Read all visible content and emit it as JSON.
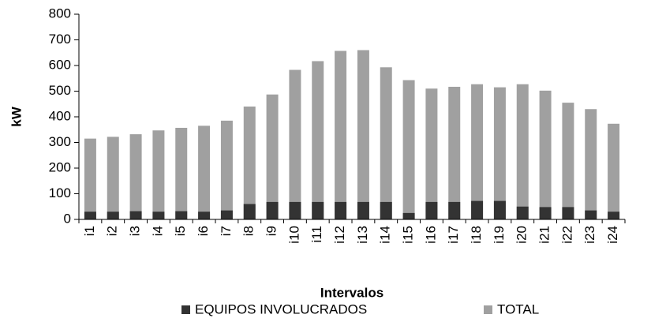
{
  "chart_data": {
    "type": "bar",
    "overlap": true,
    "y_label": "kW",
    "x_label": "Intervalos",
    "categories": [
      "i1",
      "i2",
      "i3",
      "i4",
      "i5",
      "i6",
      "i7",
      "i8",
      "i9",
      "i10",
      "i11",
      "i12",
      "i13",
      "i14",
      "i15",
      "i16",
      "i17",
      "i18",
      "i19",
      "i20",
      "i21",
      "i22",
      "i23",
      "i24"
    ],
    "series": [
      {
        "name": "EQUIPOS INVOLUCRADOS",
        "color": "#333333",
        "values": [
          30,
          30,
          32,
          30,
          32,
          30,
          35,
          60,
          68,
          68,
          68,
          68,
          68,
          68,
          25,
          68,
          68,
          72,
          72,
          50,
          48,
          48,
          35,
          30
        ]
      },
      {
        "name": "TOTAL",
        "color": "#a0a0a0",
        "values": [
          315,
          322,
          332,
          347,
          357,
          365,
          385,
          440,
          487,
          583,
          617,
          657,
          660,
          593,
          543,
          510,
          517,
          527,
          515,
          527,
          502,
          455,
          430,
          373
        ]
      }
    ],
    "ylim": [
      0,
      800
    ],
    "yticks": [
      0,
      100,
      200,
      300,
      400,
      500,
      600,
      700,
      800
    ],
    "grid": false
  }
}
